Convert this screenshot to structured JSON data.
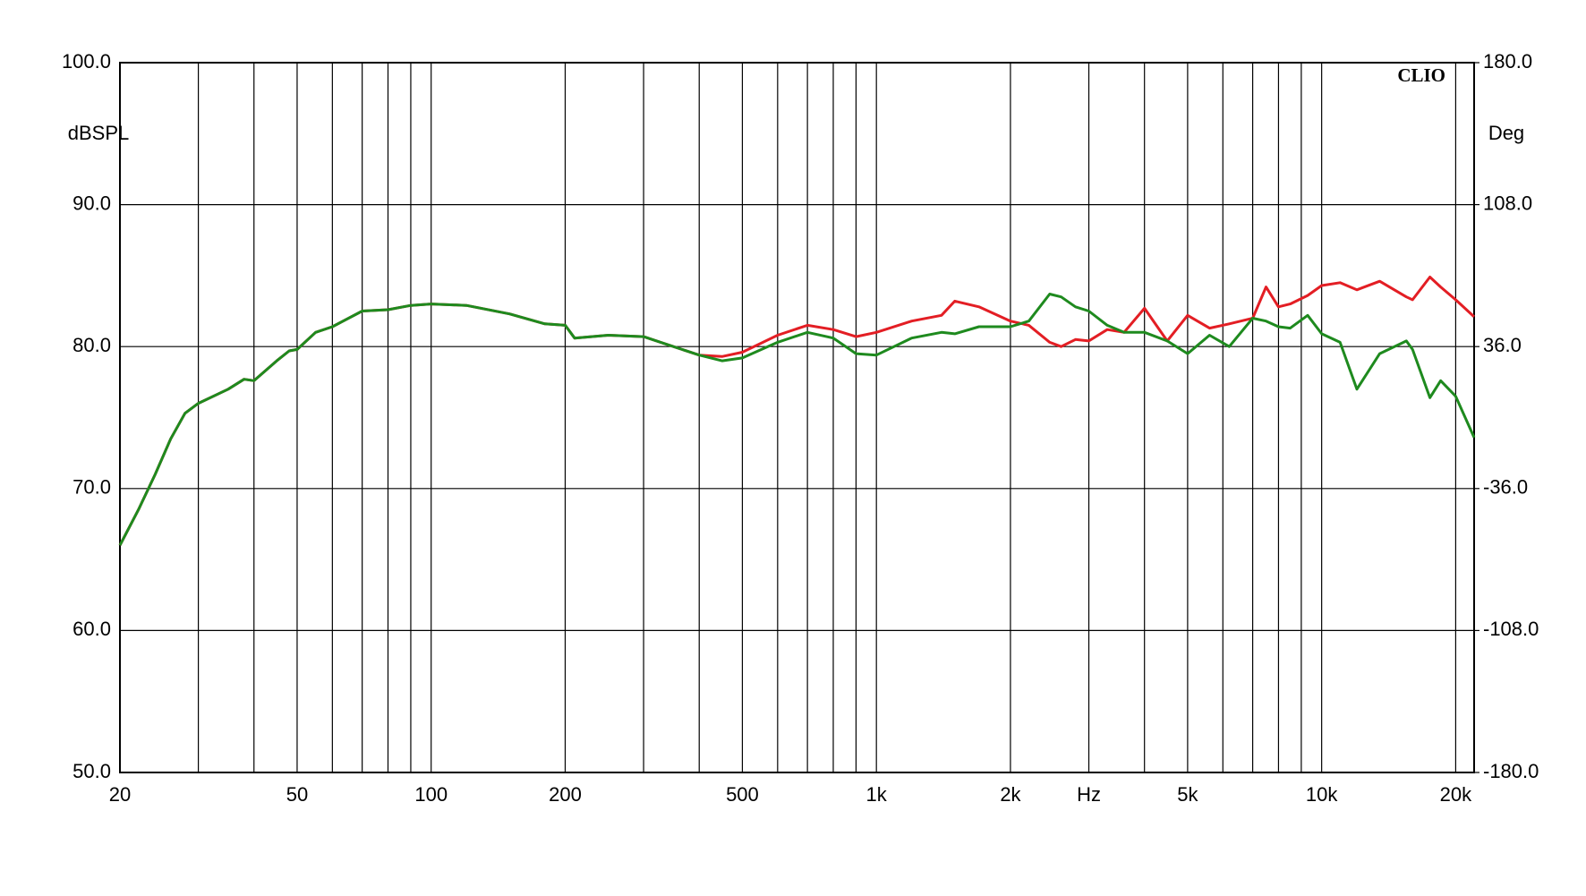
{
  "chart_data": {
    "type": "line",
    "y_label": "dBSPL",
    "y2_label": "Deg",
    "watermark": "CLIO",
    "log_x": true,
    "grid": true,
    "xlim": [
      20,
      22000
    ],
    "xticks": [
      20,
      50,
      100,
      200,
      500,
      {
        "value": 1000,
        "label": "1k"
      },
      {
        "value": 2000,
        "label": "2k"
      },
      {
        "value": 3000,
        "label": "Hz"
      },
      {
        "value": 5000,
        "label": "5k"
      },
      {
        "value": 10000,
        "label": "10k"
      },
      {
        "value": 20000,
        "label": "20k"
      }
    ],
    "xminor": [
      30,
      40,
      60,
      70,
      80,
      90,
      300,
      400,
      600,
      700,
      800,
      900,
      4000,
      6000,
      7000,
      8000,
      9000
    ],
    "ylim": [
      50,
      100
    ],
    "yticks": [
      {
        "value": 50,
        "label": "50.0"
      },
      {
        "value": 60,
        "label": "60.0"
      },
      {
        "value": 70,
        "label": "70.0"
      },
      {
        "value": 80,
        "label": "80.0"
      },
      {
        "value": 90,
        "label": "90.0"
      },
      {
        "value": 100,
        "label": "100.0"
      }
    ],
    "y2lim": [
      -180,
      180
    ],
    "y2ticks": [
      {
        "value": -180,
        "label": "-180.0"
      },
      {
        "value": -108,
        "label": "-108.0"
      },
      {
        "value": -36,
        "label": "-36.0"
      },
      {
        "value": 36,
        "label": "36.0"
      },
      {
        "value": 108,
        "label": "108.0"
      },
      {
        "value": 180,
        "label": "180.0"
      }
    ],
    "x": [
      20,
      22,
      24,
      26,
      28,
      30,
      35,
      38,
      40,
      45,
      48,
      50,
      55,
      60,
      70,
      80,
      90,
      100,
      120,
      150,
      180,
      200,
      210,
      250,
      300,
      350,
      400,
      450,
      500,
      600,
      700,
      800,
      900,
      1000,
      1200,
      1400,
      1500,
      1700,
      2000,
      2200,
      2450,
      2600,
      2800,
      3000,
      3300,
      3600,
      4000,
      4500,
      5000,
      5600,
      6200,
      7000,
      7500,
      8000,
      8500,
      9300,
      10000,
      11000,
      12000,
      13500,
      15500,
      16000,
      17500,
      18500,
      20000,
      22000
    ],
    "series": [
      {
        "color": "#e31e24",
        "values": [
          66.0,
          68.5,
          71.0,
          73.5,
          75.3,
          76.0,
          77.0,
          77.7,
          77.6,
          79.0,
          79.7,
          79.8,
          81.0,
          81.4,
          82.5,
          82.6,
          82.9,
          83.0,
          82.9,
          82.3,
          81.6,
          81.5,
          80.6,
          80.8,
          80.7,
          80.0,
          79.4,
          79.3,
          79.6,
          80.8,
          81.5,
          81.2,
          80.7,
          81.0,
          81.8,
          82.2,
          83.2,
          82.8,
          81.8,
          81.5,
          80.3,
          80.0,
          80.5,
          80.4,
          81.2,
          81.0,
          82.7,
          80.4,
          82.2,
          81.3,
          81.6,
          82.0,
          84.2,
          82.8,
          83.0,
          83.6,
          84.3,
          84.5,
          84.0,
          84.6,
          83.5,
          83.3,
          84.9,
          84.2,
          83.3,
          82.1
        ]
      },
      {
        "color": "#1e8a1e",
        "values": [
          66.0,
          68.5,
          71.0,
          73.5,
          75.3,
          76.0,
          77.0,
          77.7,
          77.6,
          79.0,
          79.7,
          79.8,
          81.0,
          81.4,
          82.5,
          82.6,
          82.9,
          83.0,
          82.9,
          82.3,
          81.6,
          81.5,
          80.6,
          80.8,
          80.7,
          80.0,
          79.4,
          79.0,
          79.2,
          80.3,
          81.0,
          80.6,
          79.5,
          79.4,
          80.6,
          81.0,
          80.9,
          81.4,
          81.4,
          81.8,
          83.7,
          83.5,
          82.8,
          82.5,
          81.5,
          81.0,
          81.0,
          80.4,
          79.5,
          80.8,
          80.0,
          82.0,
          81.8,
          81.4,
          81.3,
          82.2,
          80.9,
          80.3,
          77.0,
          79.5,
          80.4,
          79.8,
          76.4,
          77.6,
          76.5,
          73.6
        ]
      }
    ]
  }
}
